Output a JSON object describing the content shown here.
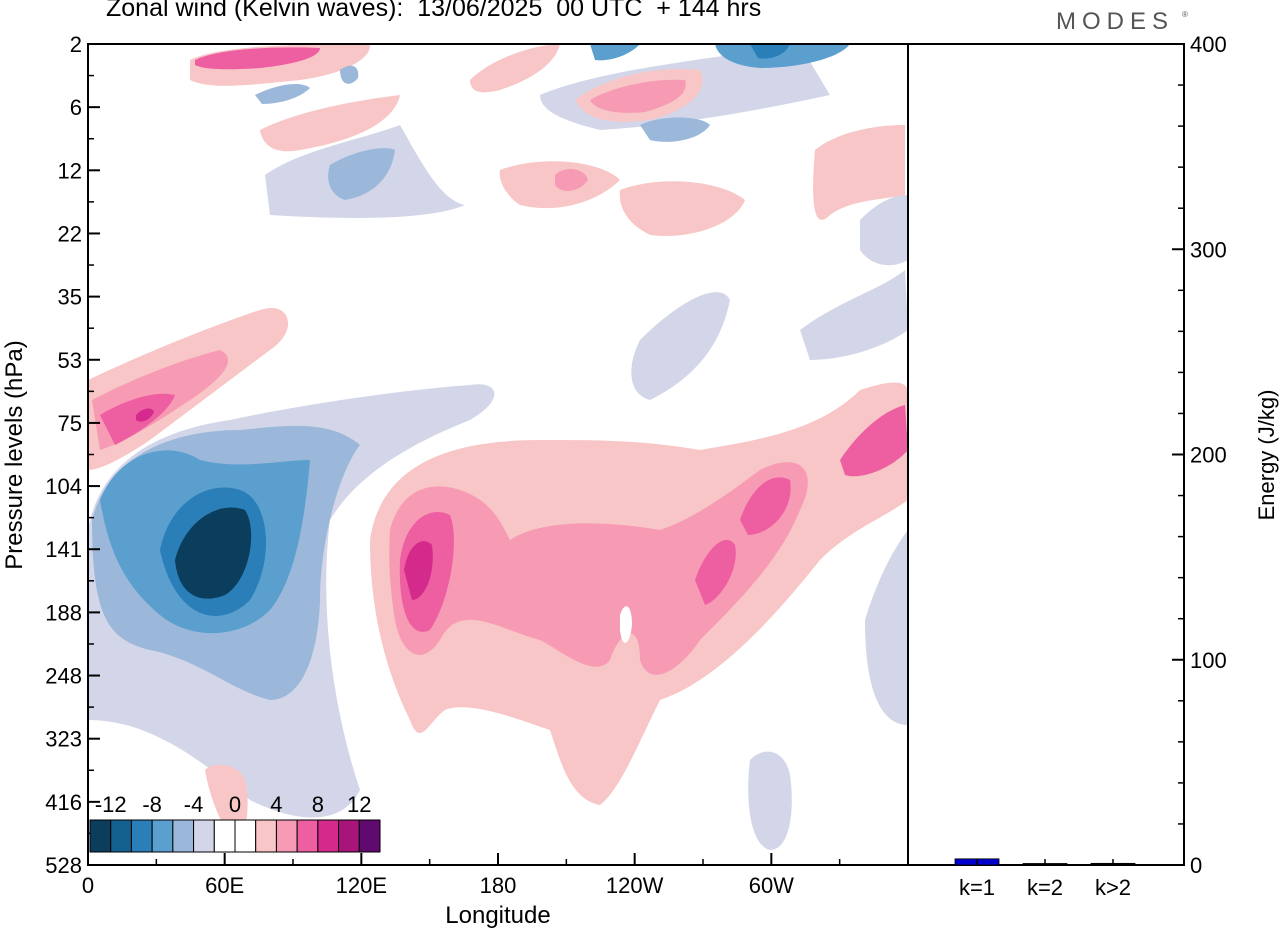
{
  "header": {
    "title": "Zonal wind (Kelvin waves):  13/06/2025  00 UTC  + 144 hrs",
    "brand": "MODES",
    "brand_mark": "®"
  },
  "chart_data": [
    {
      "type": "heatmap",
      "title": "Zonal wind (Kelvin waves):  13/06/2025  00 UTC  + 144 hrs",
      "xlabel": "Longitude",
      "ylabel": "Pressure levels (hPa)",
      "x_ticks": [
        "0",
        "60E",
        "120E",
        "180",
        "120W",
        "60W"
      ],
      "x_tick_values": [
        0,
        60,
        120,
        180,
        240,
        300
      ],
      "xlim": [
        0,
        360
      ],
      "y_ticks": [
        "2",
        "6",
        "12",
        "22",
        "35",
        "53",
        "75",
        "104",
        "141",
        "188",
        "248",
        "323",
        "416",
        "528"
      ],
      "colorbar": {
        "labels": [
          "-12",
          "-8",
          "-4",
          "0",
          "4",
          "8",
          "12"
        ],
        "colors": [
          "#0b3d5c",
          "#14608f",
          "#2a7fb8",
          "#5a9fce",
          "#9bb8da",
          "#d3d6e8",
          "#ffffff",
          "#ffffff",
          "#f8c6c6",
          "#f79ab4",
          "#ee5fa2",
          "#d42a8c",
          "#a7157b",
          "#5e0a6e"
        ]
      },
      "regions": [
        {
          "sign": "neg",
          "level": 4,
          "lon_range": [
            30,
            75
          ],
          "p_range": [
            104,
            220
          ],
          "description_value": "below -12"
        },
        {
          "sign": "neg",
          "level": 3,
          "lon_range": [
            20,
            100
          ],
          "p_range": [
            90,
            250
          ],
          "description_value": "-12 to -8"
        },
        {
          "sign": "neg",
          "level": 1,
          "lon_range": [
            0,
            130
          ],
          "p_range": [
            75,
            330
          ],
          "description_value": "-8 to -4"
        },
        {
          "sign": "pos",
          "level": 3,
          "lon_range": [
            130,
            155
          ],
          "p_range": [
            120,
            210
          ],
          "description_value": "8 to 12"
        },
        {
          "sign": "pos",
          "level": 2,
          "lon_range": [
            165,
            245
          ],
          "p_range": [
            120,
            250
          ],
          "description_value": "4 to 8"
        },
        {
          "sign": "pos",
          "level": 1,
          "lon_range": [
            130,
            360
          ],
          "p_range": [
            75,
            400
          ],
          "description_value": "0 to 4"
        },
        {
          "sign": "pos",
          "level": 3,
          "lon_range": [
            0,
            70
          ],
          "p_range": [
            53,
            100
          ],
          "description_value": "8 to 12"
        }
      ]
    },
    {
      "type": "bar",
      "categories": [
        "k=1",
        "k=2",
        "k>2"
      ],
      "values": [
        3,
        0.5,
        0.8
      ],
      "colors": [
        "#0000cc",
        "#000000",
        "#000000"
      ],
      "ylabel": "Energy (J/kg)",
      "ylim": [
        0,
        400
      ],
      "y_ticks": [
        "0",
        "100",
        "200",
        "300",
        "400"
      ],
      "y_tick_values": [
        0,
        100,
        200,
        300,
        400
      ]
    }
  ]
}
